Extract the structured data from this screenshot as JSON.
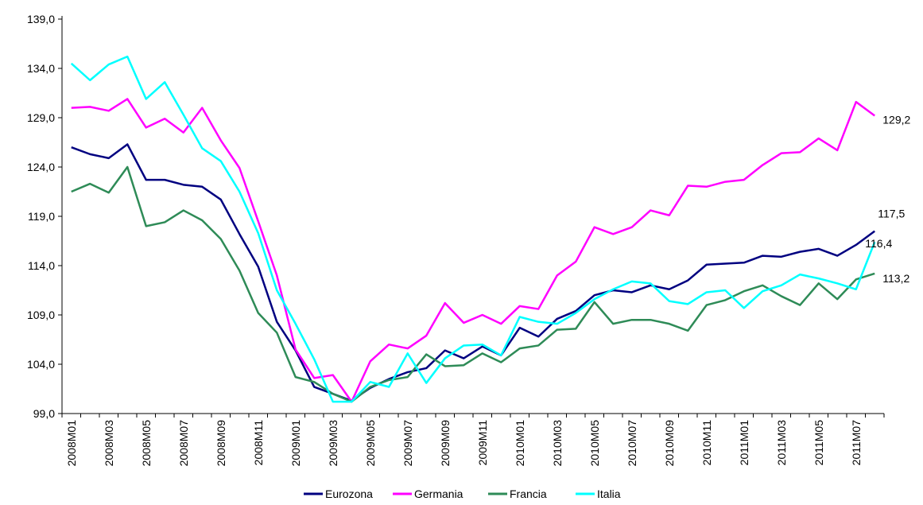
{
  "chart_data": {
    "type": "line",
    "categories": [
      "2008M01",
      null,
      "2008M03",
      null,
      "2008M05",
      null,
      "2008M07",
      null,
      "2008M09",
      null,
      "2008M11",
      null,
      "2009M01",
      null,
      "2009M03",
      null,
      "2009M05",
      null,
      "2009M07",
      null,
      "2009M09",
      null,
      "2009M11",
      null,
      "2010M01",
      null,
      "2010M03",
      null,
      "2010M05",
      null,
      "2010M07",
      null,
      "2010M09",
      null,
      "2010M11",
      null,
      "2011M01",
      null,
      "2011M03",
      null,
      "2011M05",
      null,
      "2011M07",
      null
    ],
    "series": [
      {
        "name": "Eurozona",
        "color": "#000080",
        "values": [
          126.0,
          125.3,
          124.9,
          126.3,
          122.7,
          122.7,
          122.2,
          122.0,
          120.7,
          117.2,
          113.9,
          108.3,
          105.4,
          101.7,
          101.0,
          100.3,
          101.6,
          102.5,
          103.2,
          103.6,
          105.4,
          104.6,
          105.8,
          104.9,
          107.7,
          106.8,
          108.6,
          109.4,
          111.0,
          111.5,
          111.3,
          112.0,
          111.6,
          112.5,
          114.1,
          114.2,
          114.3,
          115.0,
          114.9,
          115.4,
          115.7,
          115.0,
          116.1,
          117.5
        ],
        "value_labels": {
          "43": "117,5"
        }
      },
      {
        "name": "Germania",
        "color": "#ff00ff",
        "values": [
          130.0,
          130.1,
          129.7,
          130.9,
          128.0,
          128.9,
          127.5,
          130.0,
          126.7,
          123.9,
          118.5,
          113.0,
          105.5,
          102.6,
          102.9,
          100.2,
          104.3,
          106.0,
          105.6,
          106.9,
          110.2,
          108.2,
          109.0,
          108.1,
          109.9,
          109.6,
          113.0,
          114.4,
          117.9,
          117.2,
          117.9,
          119.6,
          119.1,
          122.1,
          122.0,
          122.5,
          122.7,
          124.2,
          125.4,
          125.5,
          126.9,
          125.7,
          130.6,
          129.2
        ],
        "value_labels": {
          "43": "129,2"
        }
      },
      {
        "name": "Francia",
        "color": "#2e8b57",
        "values": [
          121.5,
          122.3,
          121.4,
          124.0,
          118.0,
          118.4,
          119.6,
          118.6,
          116.7,
          113.5,
          109.2,
          107.2,
          102.7,
          102.2,
          101.0,
          100.2,
          101.7,
          102.4,
          102.7,
          105.0,
          103.8,
          103.9,
          105.1,
          104.2,
          105.6,
          105.9,
          107.5,
          107.6,
          110.3,
          108.1,
          108.5,
          108.5,
          108.1,
          107.4,
          110.0,
          110.5,
          111.4,
          112.0,
          110.9,
          110.0,
          112.2,
          110.6,
          112.6,
          113.2
        ],
        "value_labels": {
          "43": "113,2"
        }
      },
      {
        "name": "Italia",
        "color": "#00ffff",
        "values": [
          134.5,
          132.8,
          134.4,
          135.2,
          130.9,
          132.6,
          129.3,
          125.9,
          124.6,
          121.5,
          117.3,
          111.5,
          108.1,
          104.5,
          100.2,
          100.2,
          102.2,
          101.7,
          105.1,
          102.1,
          104.6,
          105.9,
          106.0,
          104.9,
          108.8,
          108.3,
          108.1,
          109.2,
          110.6,
          111.6,
          112.4,
          112.2,
          110.4,
          110.1,
          111.3,
          111.5,
          109.7,
          111.4,
          112.0,
          113.1,
          112.7,
          112.2,
          111.6,
          116.4
        ],
        "value_labels": {
          "43": "116,4"
        }
      }
    ],
    "ylim": [
      99,
      139
    ],
    "yticks": [
      {
        "value": 99,
        "label": "99,0"
      },
      {
        "value": 104,
        "label": "104,0"
      },
      {
        "value": 109,
        "label": "109,0"
      },
      {
        "value": 114,
        "label": "114,0"
      },
      {
        "value": 119,
        "label": "119,0"
      },
      {
        "value": 124,
        "label": "124,0"
      },
      {
        "value": 129,
        "label": "129,0"
      },
      {
        "value": 134,
        "label": "134,0"
      },
      {
        "value": 139,
        "label": "139,0"
      }
    ],
    "legend": "bottom"
  }
}
